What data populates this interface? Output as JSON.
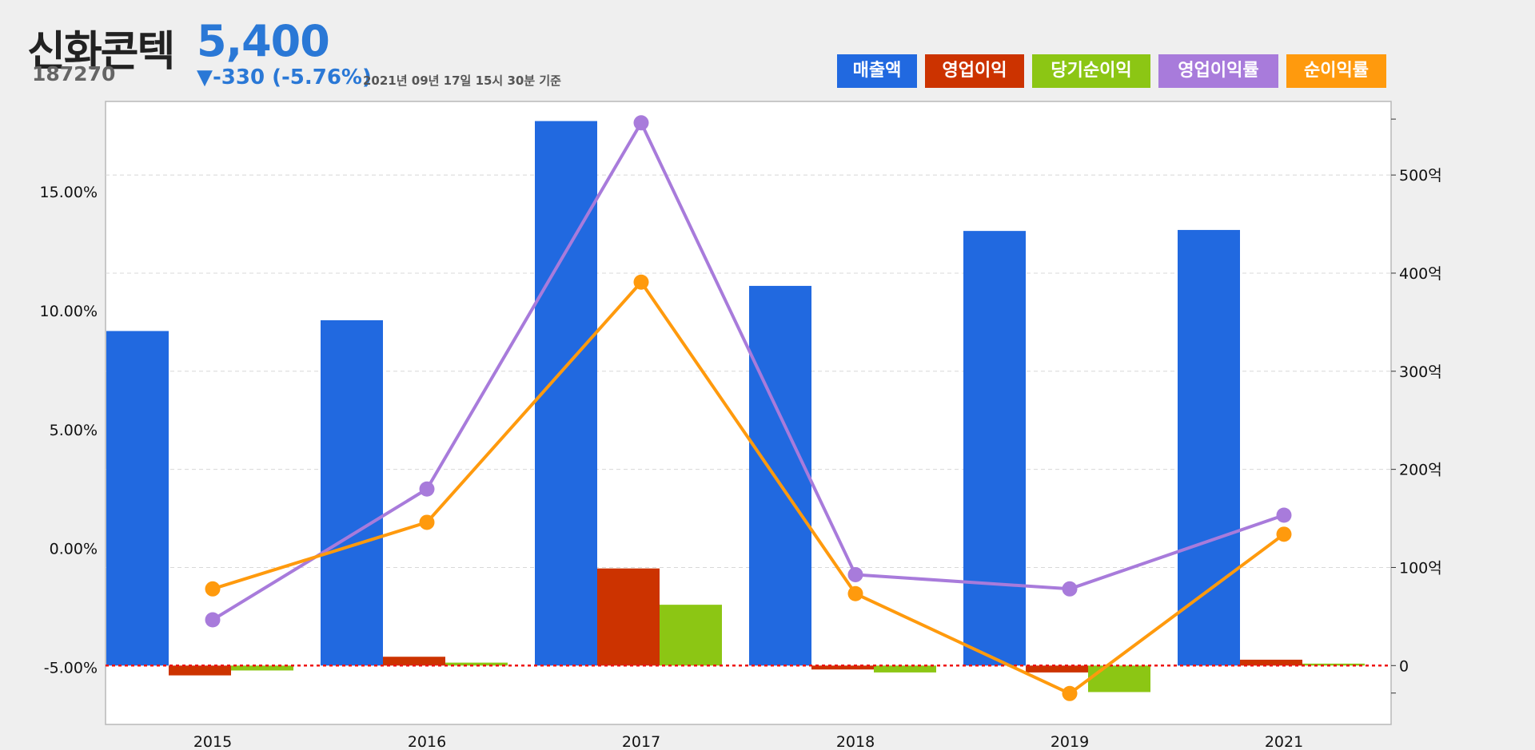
{
  "header": {
    "company_name": "신화콘텍",
    "ticker": "187270",
    "price": "5,400",
    "change": "▼-330 (-5.76%)",
    "as_of": "2021년 09년 17일 15시 30분 기준"
  },
  "legend": [
    {
      "label": "매출액",
      "color": "#2169e0"
    },
    {
      "label": "영업이익",
      "color": "#cc3300"
    },
    {
      "label": "당기순이익",
      "color": "#8cc614"
    },
    {
      "label": "영업이익률",
      "color": "#a87bdb"
    },
    {
      "label": "순이익률",
      "color": "#ff9a0d"
    }
  ],
  "chart_data": {
    "type": "bar",
    "categories": [
      "2015",
      "2016",
      "2017",
      "2018",
      "2019",
      "2021"
    ],
    "left_axis": {
      "ticks": [
        "-5.00%",
        "0.00%",
        "5.00%",
        "10.00%",
        "15.00%"
      ],
      "tick_values": [
        -5,
        0,
        5,
        10,
        15
      ],
      "range": [
        -7.4,
        18.8
      ]
    },
    "right_axis": {
      "ticks": [
        "0",
        "100억",
        "200억",
        "300억",
        "400억",
        "500억"
      ],
      "tick_values": [
        0,
        100,
        200,
        300,
        400,
        500
      ],
      "minor_ticks": [
        -28,
        557
      ],
      "range": [
        -60,
        575
      ]
    },
    "series": [
      {
        "name": "매출액",
        "type": "bar",
        "axis": "right",
        "color": "#2169e0",
        "values": [
          341,
          352,
          555,
          387,
          443,
          444
        ]
      },
      {
        "name": "영업이익",
        "type": "bar",
        "axis": "right",
        "color": "#cc3300",
        "values": [
          -10,
          9,
          99,
          -4,
          -7,
          6
        ]
      },
      {
        "name": "당기순이익",
        "type": "bar",
        "axis": "right",
        "color": "#8cc614",
        "values": [
          -5,
          3,
          62,
          -7,
          -27,
          2
        ]
      },
      {
        "name": "영업이익률",
        "type": "line",
        "axis": "left",
        "color": "#a87bdb",
        "values": [
          -3.0,
          2.5,
          17.9,
          -1.1,
          -1.7,
          1.4
        ]
      },
      {
        "name": "순이익률",
        "type": "line",
        "axis": "left",
        "color": "#ff9a0d",
        "values": [
          -1.7,
          1.1,
          11.2,
          -1.9,
          -6.1,
          0.6
        ]
      }
    ],
    "zero_line": {
      "axis": "right",
      "value": 0,
      "color": "#ee1111"
    },
    "grid": true
  }
}
